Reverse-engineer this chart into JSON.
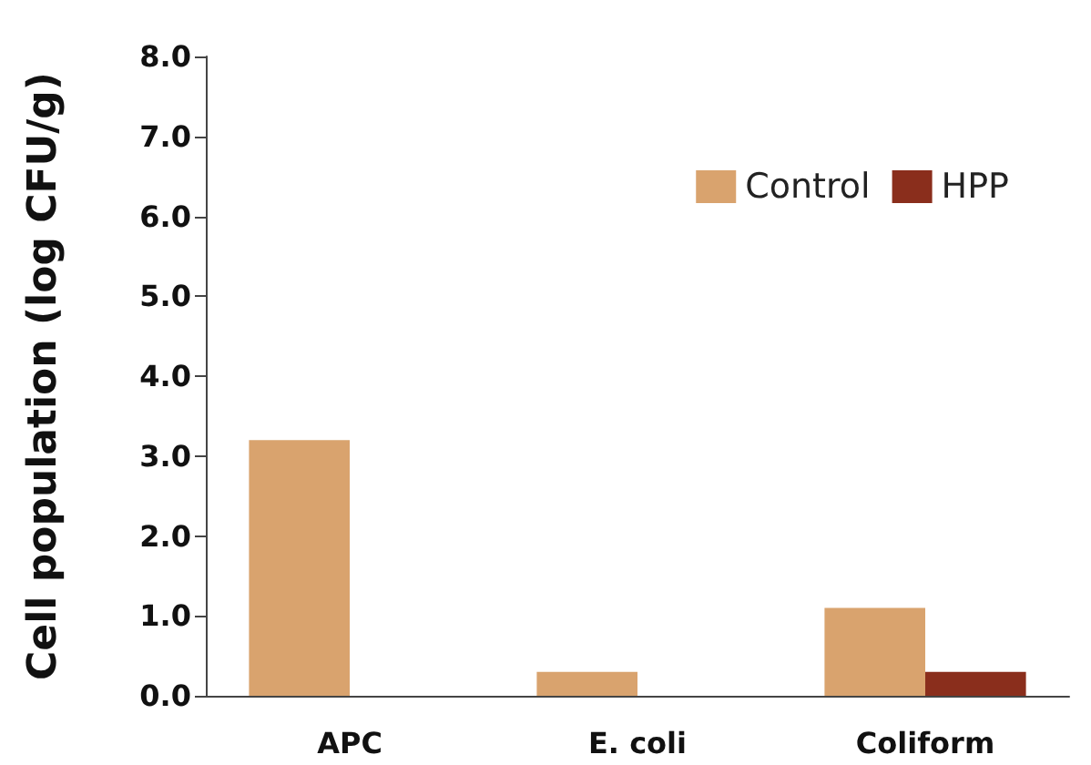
{
  "chart_data": {
    "type": "bar",
    "ylabel": "Cell population (log CFU/g)",
    "categories": [
      "APC",
      "E. coli",
      "Coliform"
    ],
    "series": [
      {
        "name": "Control",
        "color": "#d9a36e",
        "values": [
          3.2,
          0.3,
          1.1
        ]
      },
      {
        "name": "HPP",
        "color": "#8a2e1c",
        "values": [
          null,
          null,
          0.3
        ]
      }
    ],
    "ylim": [
      0,
      8
    ],
    "yticks": [
      {
        "value": 0,
        "label": "0.0"
      },
      {
        "value": 1,
        "label": "1.0"
      },
      {
        "value": 2,
        "label": "2.0"
      },
      {
        "value": 3,
        "label": "3.0"
      },
      {
        "value": 4,
        "label": "4.0"
      },
      {
        "value": 5,
        "label": "5.0"
      },
      {
        "value": 6,
        "label": "6.0"
      },
      {
        "value": 7,
        "label": "7.0"
      },
      {
        "value": 8,
        "label": "8.0"
      }
    ],
    "grid": false,
    "legend": "top right"
  }
}
